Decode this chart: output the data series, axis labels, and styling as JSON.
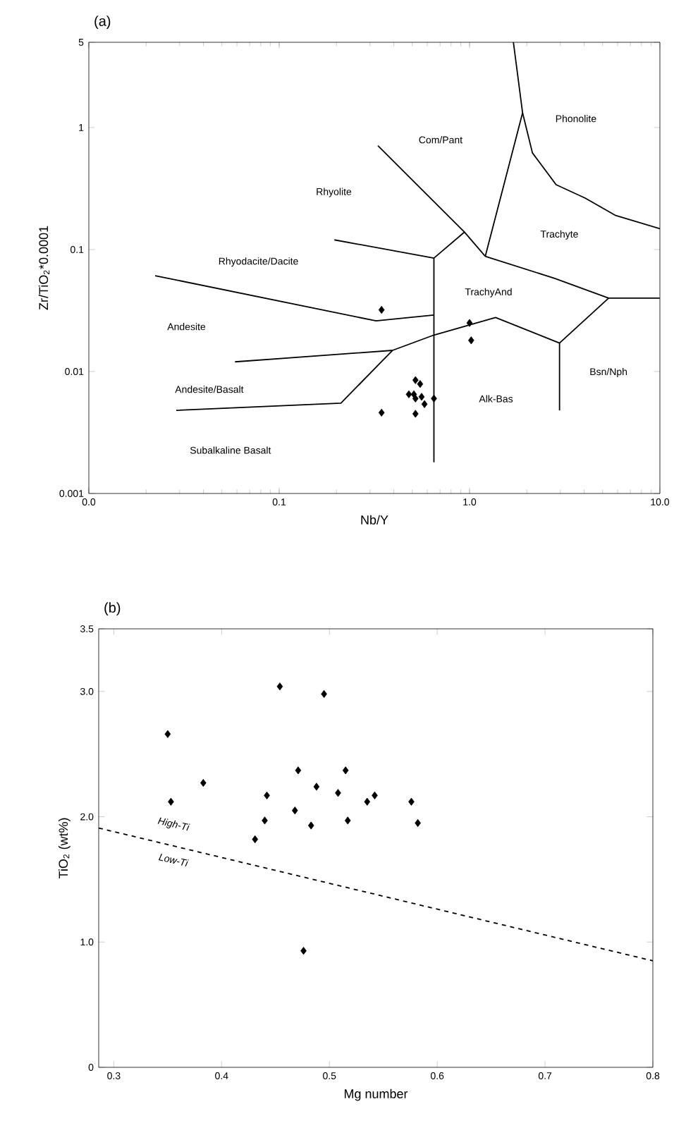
{
  "chart_data": [
    {
      "type": "scatter",
      "title": "(a)",
      "xlabel": "Nb/Y",
      "ylabel": "Zr/TiO$_{2}$*0.0001",
      "log": "xy",
      "xlim": [
        0.01,
        10
      ],
      "ylim": [
        0.001,
        5
      ],
      "xticks": [
        {
          "value": 0.01,
          "label": "0.0"
        },
        0.1,
        {
          "value": 1,
          "label": "1.0"
        },
        {
          "value": 10,
          "label": "10.0"
        }
      ],
      "yticks": [
        0.001,
        0.01,
        0.1,
        1,
        5
      ],
      "series": [
        {
          "marker": "diamond",
          "color": "#000000",
          "x": [
            0.345,
            1.0,
            1.02,
            0.345,
            0.52,
            0.52,
            0.55,
            0.48,
            0.51,
            0.56,
            0.58,
            0.65,
            0.52
          ],
          "values": [
            0.032,
            0.025,
            0.018,
            0.0046,
            0.0045,
            0.0085,
            0.0079,
            0.0065,
            0.0065,
            0.0062,
            0.0054,
            0.006,
            0.006
          ]
        },
        {
          "type": "line",
          "marker": "none",
          "color": "#000000",
          "x": [
            1.7,
            1.9,
            1.21
          ],
          "values": [
            5,
            1.32,
            0.088
          ]
        },
        {
          "type": "line",
          "marker": "none",
          "color": "#000000",
          "x": [
            1.9,
            2.14,
            2.85,
            4.05,
            5.86,
            10
          ],
          "values": [
            1.32,
            0.62,
            0.34,
            0.264,
            0.19,
            0.148
          ]
        },
        {
          "type": "line",
          "marker": "none",
          "color": "#000000",
          "x": [
            0.33,
            0.94,
            1.21
          ],
          "values": [
            0.71,
            0.139,
            0.088
          ]
        },
        {
          "type": "line",
          "marker": "none",
          "color": "#000000",
          "x": [
            1.21,
            2.8,
            5.38,
            10
          ],
          "values": [
            0.088,
            0.058,
            0.04,
            0.04
          ]
        },
        {
          "type": "line",
          "marker": "none",
          "color": "#000000",
          "x": [
            0.195,
            0.65,
            0.94
          ],
          "values": [
            0.12,
            0.085,
            0.139
          ]
        },
        {
          "type": "line",
          "marker": "none",
          "color": "#000000",
          "x": [
            0.65,
            0.65
          ],
          "values": [
            0.085,
            0.0018
          ]
        },
        {
          "type": "line",
          "marker": "none",
          "color": "#000000",
          "x": [
            0.0223,
            0.323,
            0.65
          ],
          "values": [
            0.061,
            0.026,
            0.029
          ]
        },
        {
          "type": "line",
          "marker": "none",
          "color": "#000000",
          "x": [
            0.0586,
            0.394,
            0.65,
            1.37,
            2.97,
            5.38
          ],
          "values": [
            0.012,
            0.0149,
            0.0199,
            0.0277,
            0.0171,
            0.04
          ]
        },
        {
          "type": "line",
          "marker": "none",
          "color": "#000000",
          "x": [
            2.97,
            2.97
          ],
          "values": [
            0.0171,
            0.0048
          ]
        },
        {
          "type": "line",
          "marker": "none",
          "color": "#000000",
          "x": [
            0.0288,
            0.211,
            0.394
          ],
          "values": [
            0.0048,
            0.0055,
            0.0149
          ]
        }
      ],
      "annotations": [
        "Phonolite",
        "Com/Pant",
        "Rhyolite",
        "Trachyte",
        "Rhyodacite/Dacite",
        "TrachyAnd",
        "Andesite",
        "Andesite/Basalt",
        "Alk-Bas",
        "Bsn/Nph",
        "Subalkaline Basalt"
      ]
    },
    {
      "type": "scatter",
      "title": "(b)",
      "xlabel": "Mg number",
      "ylabel": "TiO$_{2}$ (wt%)",
      "xlim": [
        0.286,
        0.8
      ],
      "ylim": [
        0,
        3.5
      ],
      "xticks": [
        0.3,
        0.4,
        0.5,
        0.6,
        0.7,
        0.8
      ],
      "yticks": [
        0,
        {
          "value": 1,
          "label": "1.0"
        },
        {
          "value": 2,
          "label": "2.0"
        },
        {
          "value": 3,
          "label": "3.0"
        },
        3.5
      ],
      "series": [
        {
          "marker": "diamond",
          "color": "#000000",
          "x": [
            0.35,
            0.353,
            0.383,
            0.454,
            0.495,
            0.471,
            0.515,
            0.442,
            0.488,
            0.508,
            0.542,
            0.535,
            0.576,
            0.468,
            0.44,
            0.517,
            0.483,
            0.582,
            0.431,
            0.476
          ],
          "values": [
            2.66,
            2.12,
            2.27,
            3.04,
            2.98,
            2.37,
            2.37,
            2.17,
            2.24,
            2.19,
            2.17,
            2.12,
            2.12,
            2.05,
            1.97,
            1.97,
            1.93,
            1.95,
            1.82,
            0.93
          ]
        },
        {
          "type": "line",
          "marker": "none",
          "color": "#000000",
          "line_style": "dashed",
          "x": [
            0.286,
            0.8
          ],
          "values": [
            1.91,
            0.85
          ]
        }
      ],
      "annotations": [
        "*High-Ti*",
        "*Low-Ti*"
      ]
    }
  ]
}
